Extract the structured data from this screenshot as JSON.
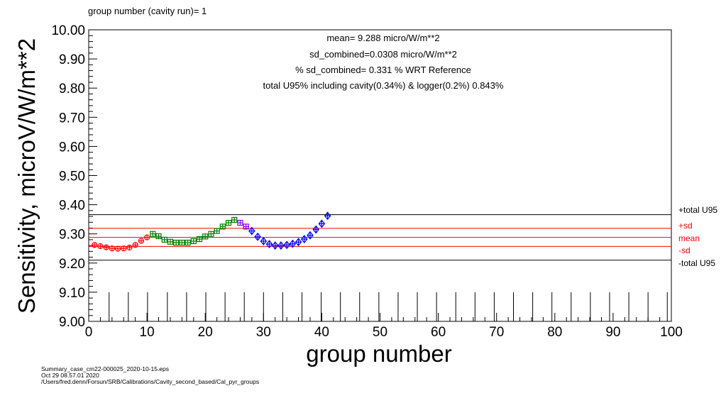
{
  "chart_data": {
    "type": "scatter",
    "header": "group number (cavity run)=  1",
    "xlabel": "group number",
    "ylabel": "Sensitivity, microV/W/m**2",
    "xlim": [
      0,
      100
    ],
    "ylim": [
      9.0,
      10.0
    ],
    "x_ticks": [
      "0",
      "10",
      "20",
      "30",
      "40",
      "50",
      "60",
      "70",
      "80",
      "90",
      "100"
    ],
    "y_ticks": [
      "9.00",
      "9.10",
      "9.20",
      "9.30",
      "9.40",
      "9.50",
      "9.60",
      "9.70",
      "9.80",
      "9.90",
      "10.00"
    ],
    "stats": [
      "mean= 9.288 micro/W/m**2",
      "sd_combined=0.0308 micro/W/m**2",
      "% sd_combined= 0.331 % WRT Reference",
      "total U95% including cavity(0.34%) & logger(0.2%) 0.843%"
    ],
    "reference_lines": [
      {
        "label": "+total U95",
        "value": 9.366,
        "color": "#000000"
      },
      {
        "label": "+sd",
        "value": 9.319,
        "color": "#ff0000"
      },
      {
        "label": "mean",
        "value": 9.288,
        "color": "#ff0000"
      },
      {
        "label": "-sd",
        "value": 9.257,
        "color": "#ff0000"
      },
      {
        "label": "-total U95",
        "value": 9.21,
        "color": "#000000"
      }
    ],
    "cavity_ticks": {
      "x": [
        3.5,
        6.8,
        10.1,
        13.5,
        16.8,
        20.1,
        23.4,
        26.7,
        30.0,
        33.3,
        36.6,
        39.9,
        43.2,
        46.5,
        49.8,
        53.1,
        56.4,
        59.7,
        63.0,
        66.3,
        69.6,
        72.9,
        76.2,
        79.5,
        82.8,
        86.1,
        89.4,
        92.7,
        96.0,
        99.3
      ],
      "top": 9.1
    },
    "series": [
      {
        "marker": "circle",
        "color": "#ff0000",
        "x": [
          1,
          2,
          3,
          4,
          5,
          6,
          7,
          8,
          9,
          10
        ],
        "y": [
          9.262,
          9.258,
          9.254,
          9.25,
          9.249,
          9.25,
          9.253,
          9.262,
          9.276,
          9.288
        ],
        "err": [
          0.008,
          0.008,
          0.008,
          0.008,
          0.008,
          0.008,
          0.008,
          0.008,
          0.008,
          0.008
        ]
      },
      {
        "marker": "square",
        "color": "#008000",
        "x": [
          11,
          12,
          13,
          14,
          15,
          16,
          17,
          18,
          19,
          20,
          21,
          22,
          23,
          24,
          25
        ],
        "y": [
          9.3,
          9.292,
          9.28,
          9.273,
          9.27,
          9.27,
          9.27,
          9.275,
          9.282,
          9.291,
          9.3,
          9.31,
          9.325,
          9.338,
          9.348
        ],
        "err": [
          0.008,
          0.008,
          0.008,
          0.008,
          0.008,
          0.008,
          0.008,
          0.008,
          0.008,
          0.008,
          0.008,
          0.008,
          0.008,
          0.008,
          0.008
        ]
      },
      {
        "marker": "square",
        "color": "#8000ff",
        "x": [
          26,
          27
        ],
        "y": [
          9.338,
          9.325
        ],
        "err": [
          0.008,
          0.008
        ]
      },
      {
        "marker": "diamond",
        "color": "#0000ff",
        "x": [
          28,
          29,
          30,
          31,
          32,
          33,
          34,
          35,
          36,
          37,
          38,
          39,
          40,
          41
        ],
        "y": [
          9.31,
          9.29,
          9.275,
          9.265,
          9.26,
          9.26,
          9.262,
          9.266,
          9.272,
          9.282,
          9.295,
          9.315,
          9.335,
          9.362
        ],
        "err": [
          0.01,
          0.01,
          0.01,
          0.01,
          0.01,
          0.01,
          0.01,
          0.01,
          0.01,
          0.01,
          0.01,
          0.01,
          0.01,
          0.01
        ]
      }
    ]
  },
  "footer": {
    "line1": "Summary_case_cm22-000025_2020-10-15.eps",
    "line2": "Oct 29 08.57.01 2020",
    "line3": "/Users/fred.denn/Forsun/SRB/Calibrations/Cavity_second_based/Cal_pyr_groups"
  }
}
